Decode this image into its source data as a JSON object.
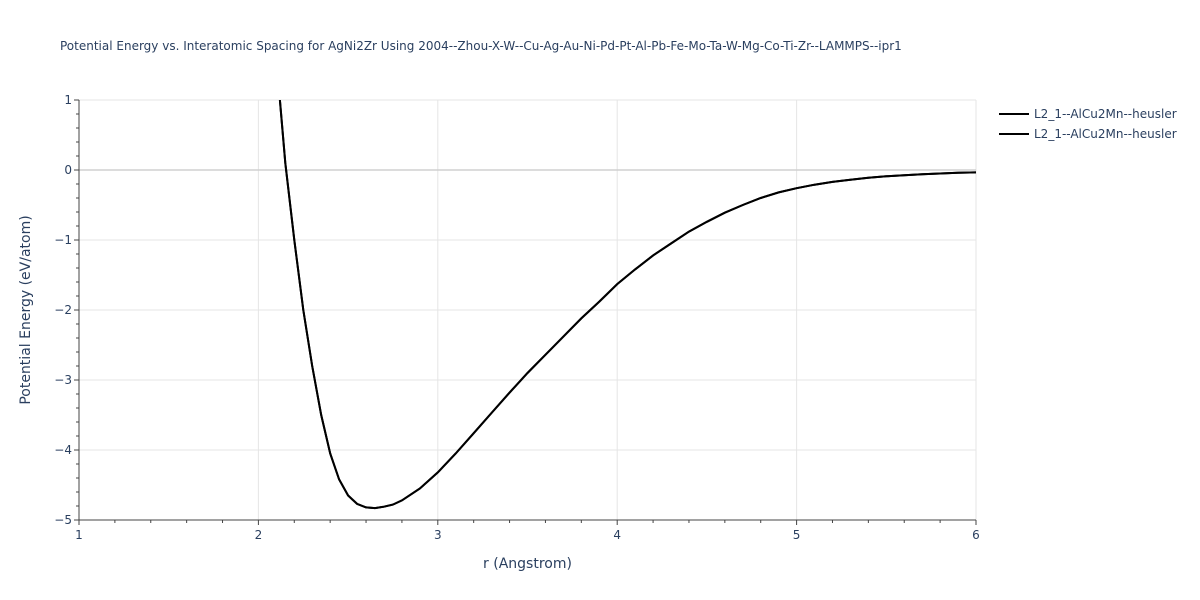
{
  "chart_data": {
    "type": "line",
    "title": "Potential Energy vs. Interatomic Spacing for AgNi2Zr Using 2004--Zhou-X-W--Cu-Ag-Au-Ni-Pd-Pt-Al-Pb-Fe-Mo-Ta-W-Mg-Co-Ti-Zr--LAMMPS--ipr1",
    "xlabel": "r (Angstrom)",
    "ylabel": "Potential Energy (eV/atom)",
    "xlim": [
      1,
      6
    ],
    "ylim": [
      -5,
      1
    ],
    "xticks": [
      "1",
      "2",
      "3",
      "4",
      "5",
      "6"
    ],
    "yticks": [
      "1",
      "0",
      "−1",
      "−2",
      "−3",
      "−4",
      "−5"
    ],
    "xtick_values": [
      1,
      2,
      3,
      4,
      5,
      6
    ],
    "ytick_values": [
      1,
      0,
      -1,
      -2,
      -3,
      -4,
      -5
    ],
    "grid": true,
    "legend_position": "top-right",
    "series": [
      {
        "name": "L2_1--AlCu2Mn--heusler",
        "color": "#000000",
        "x": [
          2.12,
          2.15,
          2.2,
          2.25,
          2.3,
          2.35,
          2.4,
          2.45,
          2.5,
          2.55,
          2.6,
          2.65,
          2.7,
          2.75,
          2.8,
          2.9,
          3.0,
          3.1,
          3.2,
          3.3,
          3.4,
          3.5,
          3.6,
          3.7,
          3.8,
          3.9,
          4.0,
          4.1,
          4.2,
          4.3,
          4.4,
          4.5,
          4.6,
          4.7,
          4.8,
          4.9,
          5.0,
          5.1,
          5.2,
          5.3,
          5.4,
          5.5,
          5.6,
          5.7,
          5.8,
          5.9,
          6.0
        ],
        "y": [
          1.0,
          0.1,
          -1.0,
          -2.0,
          -2.8,
          -3.5,
          -4.05,
          -4.42,
          -4.65,
          -4.77,
          -4.82,
          -4.83,
          -4.81,
          -4.78,
          -4.72,
          -4.55,
          -4.32,
          -4.05,
          -3.76,
          -3.47,
          -3.18,
          -2.9,
          -2.64,
          -2.38,
          -2.12,
          -1.88,
          -1.63,
          -1.42,
          -1.22,
          -1.05,
          -0.88,
          -0.74,
          -0.61,
          -0.5,
          -0.4,
          -0.32,
          -0.26,
          -0.21,
          -0.17,
          -0.14,
          -0.11,
          -0.09,
          -0.075,
          -0.06,
          -0.05,
          -0.04,
          -0.035
        ]
      },
      {
        "name": "L2_1--AlCu2Mn--heusler",
        "color": "#000000",
        "x": [
          2.12,
          2.15,
          2.2,
          2.25,
          2.3,
          2.35,
          2.4,
          2.45,
          2.5,
          2.55,
          2.6,
          2.65,
          2.7,
          2.75,
          2.8,
          2.9,
          3.0,
          3.1,
          3.2,
          3.3,
          3.4,
          3.5,
          3.6,
          3.7,
          3.8,
          3.9,
          4.0,
          4.1,
          4.2,
          4.3,
          4.4,
          4.5,
          4.6,
          4.7,
          4.8,
          4.9,
          5.0,
          5.1,
          5.2,
          5.3,
          5.4,
          5.5,
          5.6,
          5.7,
          5.8,
          5.9,
          6.0
        ],
        "y": [
          1.0,
          0.1,
          -1.0,
          -2.0,
          -2.8,
          -3.5,
          -4.05,
          -4.42,
          -4.65,
          -4.77,
          -4.82,
          -4.83,
          -4.81,
          -4.78,
          -4.72,
          -4.55,
          -4.32,
          -4.05,
          -3.76,
          -3.47,
          -3.18,
          -2.9,
          -2.64,
          -2.38,
          -2.12,
          -1.88,
          -1.63,
          -1.42,
          -1.22,
          -1.05,
          -0.88,
          -0.74,
          -0.61,
          -0.5,
          -0.4,
          -0.32,
          -0.26,
          -0.21,
          -0.17,
          -0.14,
          -0.11,
          -0.09,
          -0.075,
          -0.06,
          -0.05,
          -0.04,
          -0.035
        ]
      }
    ]
  }
}
